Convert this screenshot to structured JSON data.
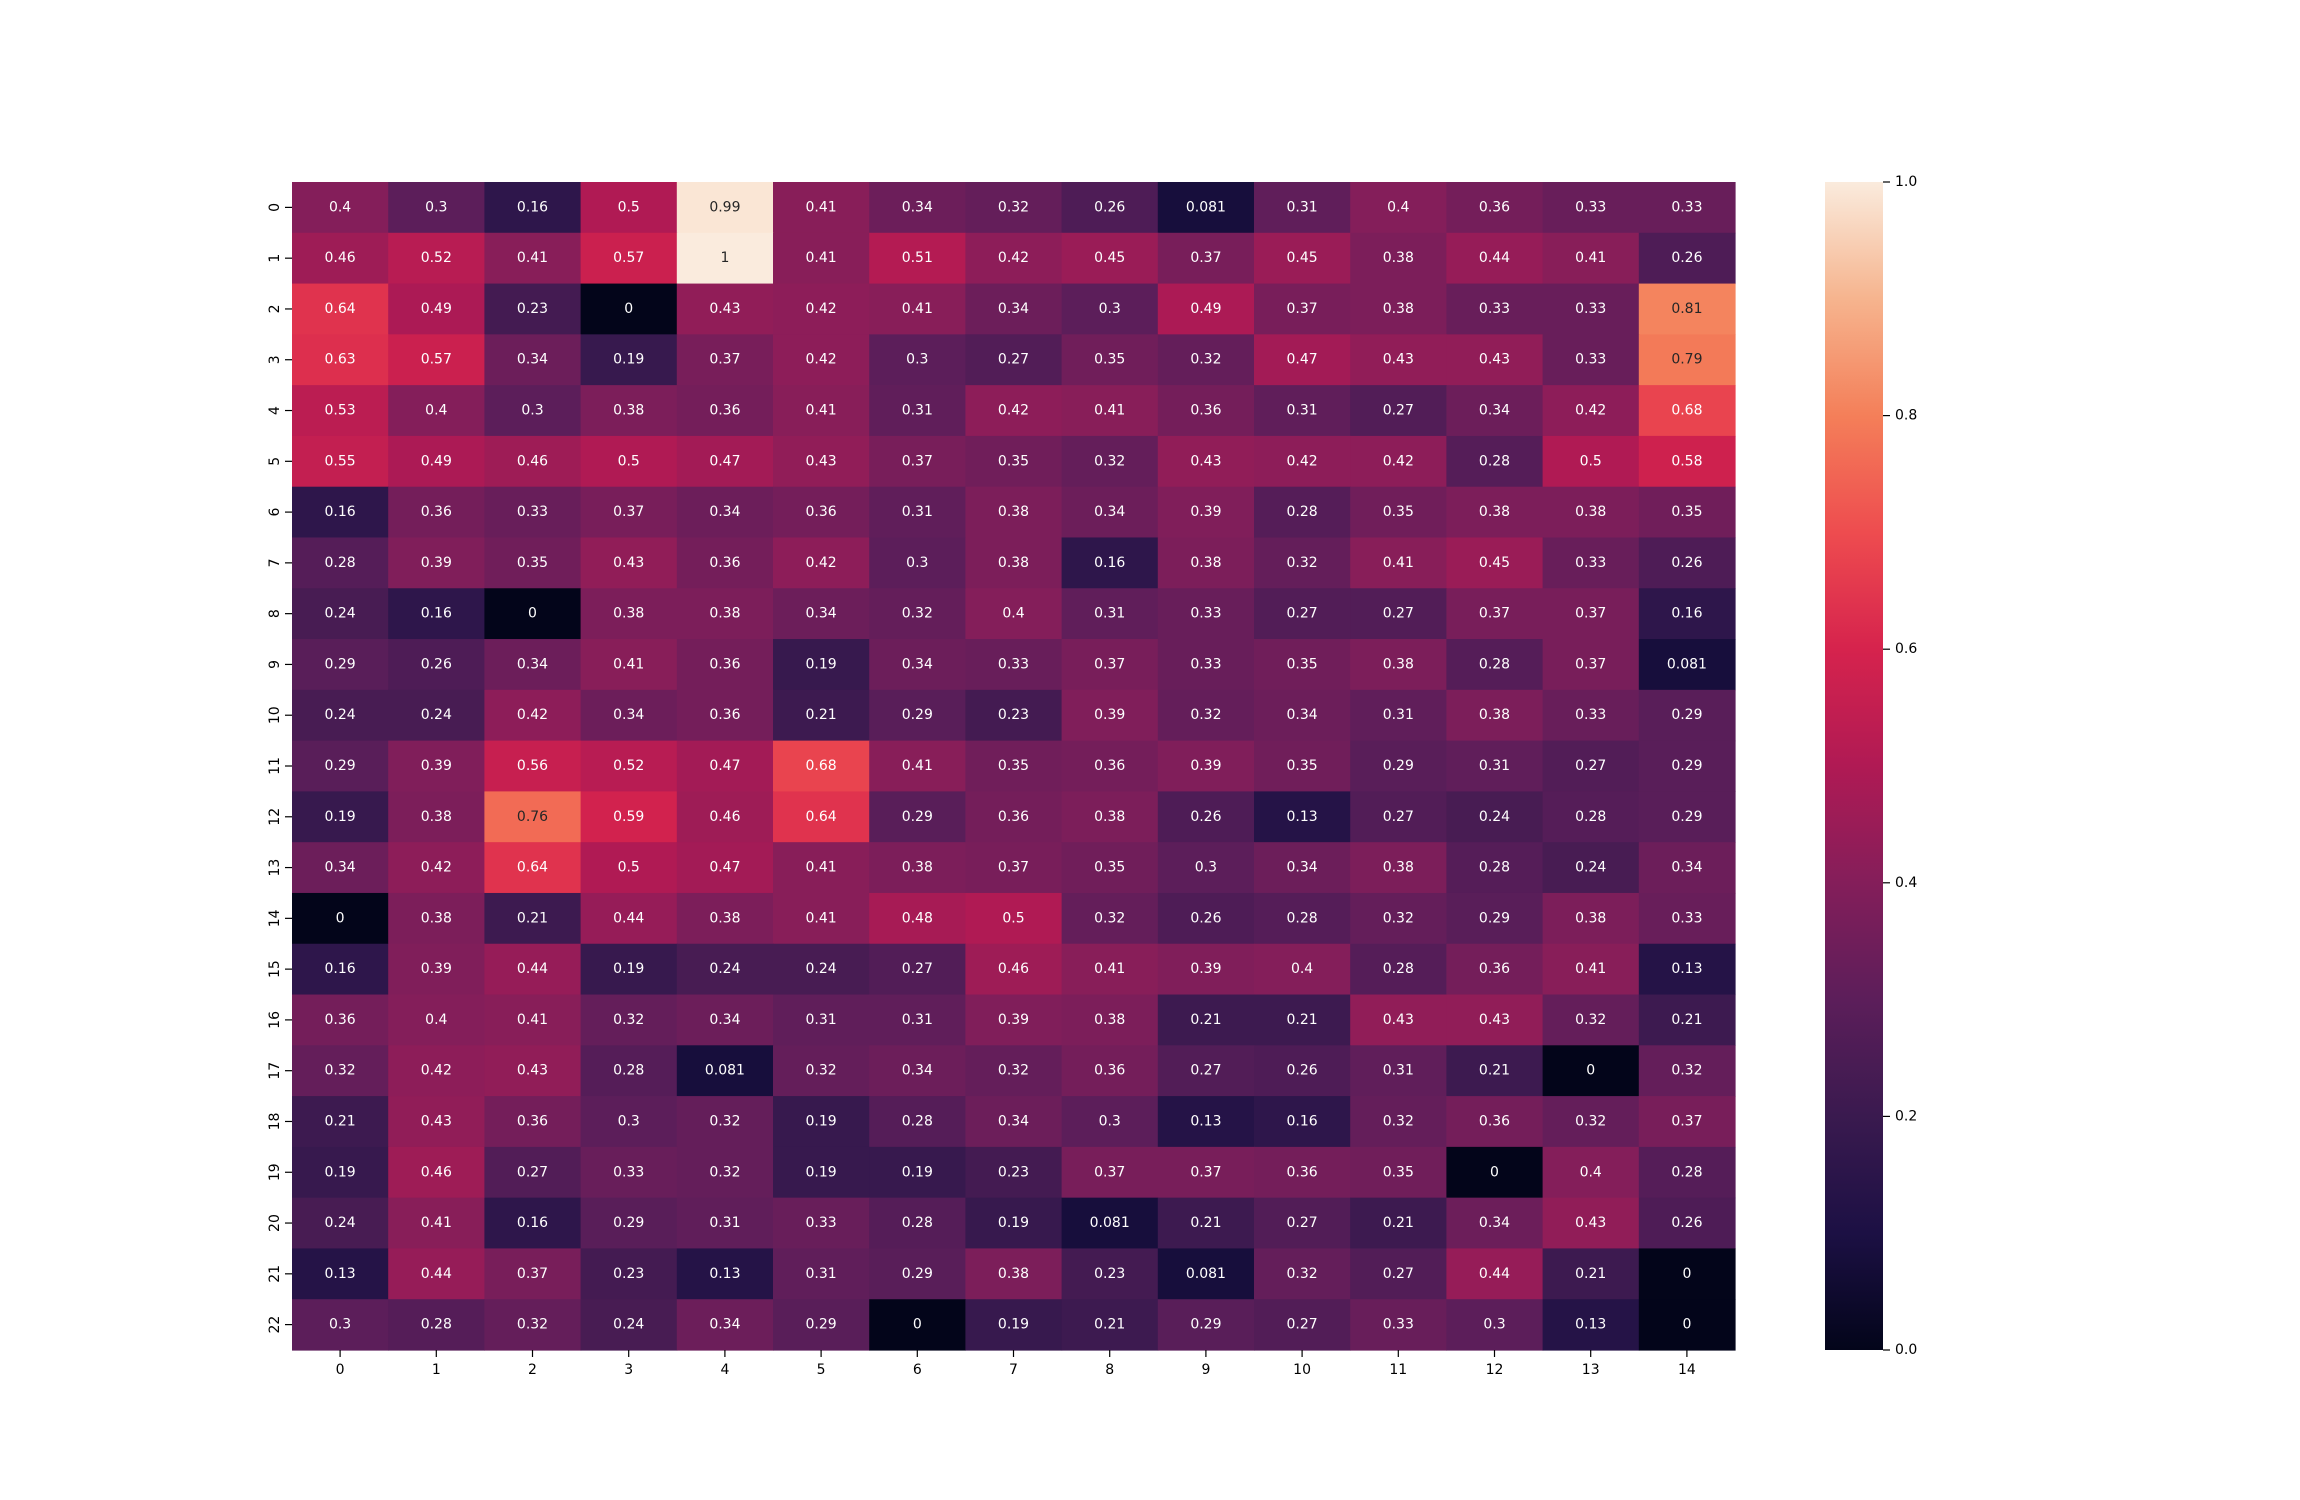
{
  "chart_data": {
    "type": "heatmap",
    "colormap": "rocket",
    "vmin": 0,
    "vmax": 1,
    "x_tick_labels": [
      "0",
      "1",
      "2",
      "3",
      "4",
      "5",
      "6",
      "7",
      "8",
      "9",
      "10",
      "11",
      "12",
      "13",
      "14"
    ],
    "y_tick_labels": [
      "0",
      "1",
      "2",
      "3",
      "4",
      "5",
      "6",
      "7",
      "8",
      "9",
      "10",
      "11",
      "12",
      "13",
      "14",
      "15",
      "16",
      "17",
      "18",
      "19",
      "20",
      "21",
      "22"
    ],
    "colorbar_ticks": [
      "0.0",
      "0.2",
      "0.4",
      "0.6",
      "0.8",
      "1.0"
    ],
    "annotate": true,
    "values": [
      [
        "0.4",
        "0.3",
        "0.16",
        "0.5",
        "0.99",
        "0.41",
        "0.34",
        "0.32",
        "0.26",
        "0.081",
        "0.31",
        "0.4",
        "0.36",
        "0.33",
        "0.33"
      ],
      [
        "0.46",
        "0.52",
        "0.41",
        "0.57",
        "1",
        "0.41",
        "0.51",
        "0.42",
        "0.45",
        "0.37",
        "0.45",
        "0.38",
        "0.44",
        "0.41",
        "0.26"
      ],
      [
        "0.64",
        "0.49",
        "0.23",
        "0",
        "0.43",
        "0.42",
        "0.41",
        "0.34",
        "0.3",
        "0.49",
        "0.37",
        "0.38",
        "0.33",
        "0.33",
        "0.81"
      ],
      [
        "0.63",
        "0.57",
        "0.34",
        "0.19",
        "0.37",
        "0.42",
        "0.3",
        "0.27",
        "0.35",
        "0.32",
        "0.47",
        "0.43",
        "0.43",
        "0.33",
        "0.79"
      ],
      [
        "0.53",
        "0.4",
        "0.3",
        "0.38",
        "0.36",
        "0.41",
        "0.31",
        "0.42",
        "0.41",
        "0.36",
        "0.31",
        "0.27",
        "0.34",
        "0.42",
        "0.68"
      ],
      [
        "0.55",
        "0.49",
        "0.46",
        "0.5",
        "0.47",
        "0.43",
        "0.37",
        "0.35",
        "0.32",
        "0.43",
        "0.42",
        "0.42",
        "0.28",
        "0.5",
        "0.58"
      ],
      [
        "0.16",
        "0.36",
        "0.33",
        "0.37",
        "0.34",
        "0.36",
        "0.31",
        "0.38",
        "0.34",
        "0.39",
        "0.28",
        "0.35",
        "0.38",
        "0.38",
        "0.35"
      ],
      [
        "0.28",
        "0.39",
        "0.35",
        "0.43",
        "0.36",
        "0.42",
        "0.3",
        "0.38",
        "0.16",
        "0.38",
        "0.32",
        "0.41",
        "0.45",
        "0.33",
        "0.26"
      ],
      [
        "0.24",
        "0.16",
        "0",
        "0.38",
        "0.38",
        "0.34",
        "0.32",
        "0.4",
        "0.31",
        "0.33",
        "0.27",
        "0.27",
        "0.37",
        "0.37",
        "0.16"
      ],
      [
        "0.29",
        "0.26",
        "0.34",
        "0.41",
        "0.36",
        "0.19",
        "0.34",
        "0.33",
        "0.37",
        "0.33",
        "0.35",
        "0.38",
        "0.28",
        "0.37",
        "0.081"
      ],
      [
        "0.24",
        "0.24",
        "0.42",
        "0.34",
        "0.36",
        "0.21",
        "0.29",
        "0.23",
        "0.39",
        "0.32",
        "0.34",
        "0.31",
        "0.38",
        "0.33",
        "0.29"
      ],
      [
        "0.29",
        "0.39",
        "0.56",
        "0.52",
        "0.47",
        "0.68",
        "0.41",
        "0.35",
        "0.36",
        "0.39",
        "0.35",
        "0.29",
        "0.31",
        "0.27",
        "0.29"
      ],
      [
        "0.19",
        "0.38",
        "0.76",
        "0.59",
        "0.46",
        "0.64",
        "0.29",
        "0.36",
        "0.38",
        "0.26",
        "0.13",
        "0.27",
        "0.24",
        "0.28",
        "0.29"
      ],
      [
        "0.34",
        "0.42",
        "0.64",
        "0.5",
        "0.47",
        "0.41",
        "0.38",
        "0.37",
        "0.35",
        "0.3",
        "0.34",
        "0.38",
        "0.28",
        "0.24",
        "0.34"
      ],
      [
        "0",
        "0.38",
        "0.21",
        "0.44",
        "0.38",
        "0.41",
        "0.48",
        "0.5",
        "0.32",
        "0.26",
        "0.28",
        "0.32",
        "0.29",
        "0.38",
        "0.33"
      ],
      [
        "0.16",
        "0.39",
        "0.44",
        "0.19",
        "0.24",
        "0.24",
        "0.27",
        "0.46",
        "0.41",
        "0.39",
        "0.4",
        "0.28",
        "0.36",
        "0.41",
        "0.13"
      ],
      [
        "0.36",
        "0.4",
        "0.41",
        "0.32",
        "0.34",
        "0.31",
        "0.31",
        "0.39",
        "0.38",
        "0.21",
        "0.21",
        "0.43",
        "0.43",
        "0.32",
        "0.21"
      ],
      [
        "0.32",
        "0.42",
        "0.43",
        "0.28",
        "0.081",
        "0.32",
        "0.34",
        "0.32",
        "0.36",
        "0.27",
        "0.26",
        "0.31",
        "0.21",
        "0",
        "0.32"
      ],
      [
        "0.21",
        "0.43",
        "0.36",
        "0.3",
        "0.32",
        "0.19",
        "0.28",
        "0.34",
        "0.3",
        "0.13",
        "0.16",
        "0.32",
        "0.36",
        "0.32",
        "0.37"
      ],
      [
        "0.19",
        "0.46",
        "0.27",
        "0.33",
        "0.32",
        "0.19",
        "0.19",
        "0.23",
        "0.37",
        "0.37",
        "0.36",
        "0.35",
        "0",
        "0.4",
        "0.28"
      ],
      [
        "0.24",
        "0.41",
        "0.16",
        "0.29",
        "0.31",
        "0.33",
        "0.28",
        "0.19",
        "0.081",
        "0.21",
        "0.27",
        "0.21",
        "0.34",
        "0.43",
        "0.26"
      ],
      [
        "0.13",
        "0.44",
        "0.37",
        "0.23",
        "0.13",
        "0.31",
        "0.29",
        "0.38",
        "0.23",
        "0.081",
        "0.32",
        "0.27",
        "0.44",
        "0.21",
        "0"
      ],
      [
        "0.3",
        "0.28",
        "0.32",
        "0.24",
        "0.34",
        "0.29",
        "0",
        "0.19",
        "0.21",
        "0.29",
        "0.27",
        "0.33",
        "0.3",
        "0.13",
        "0"
      ]
    ],
    "title": "",
    "xlabel": "",
    "ylabel": ""
  }
}
